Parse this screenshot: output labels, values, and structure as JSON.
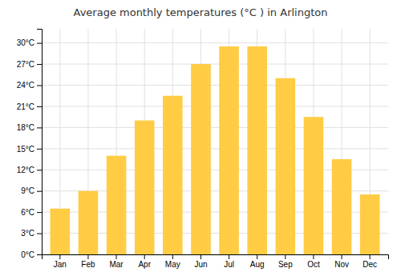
{
  "chart_data": {
    "type": "bar",
    "title": "Average monthly temperatures (°C ) in Arlington",
    "categories": [
      "Jan",
      "Feb",
      "Mar",
      "Apr",
      "May",
      "Jun",
      "Jul",
      "Aug",
      "Sep",
      "Oct",
      "Nov",
      "Dec"
    ],
    "values": [
      6.5,
      9.0,
      14.0,
      19.0,
      22.5,
      27.0,
      29.5,
      29.5,
      25.0,
      19.5,
      13.5,
      8.5
    ],
    "color": "#FFCC44",
    "ylim": [
      0,
      32
    ],
    "yticks": [
      {
        "value": 0,
        "label": "0°C"
      },
      {
        "value": 3,
        "label": "3°C"
      },
      {
        "value": 6,
        "label": "6°C"
      },
      {
        "value": 9,
        "label": "9°C"
      },
      {
        "value": 12,
        "label": "12°C"
      },
      {
        "value": 15,
        "label": "15°C"
      },
      {
        "value": 18,
        "label": "18°C"
      },
      {
        "value": 21,
        "label": "21°C"
      },
      {
        "value": 24,
        "label": "24°C"
      },
      {
        "value": 27,
        "label": "27°C"
      },
      {
        "value": 30,
        "label": "30°C"
      }
    ],
    "grid": true
  }
}
